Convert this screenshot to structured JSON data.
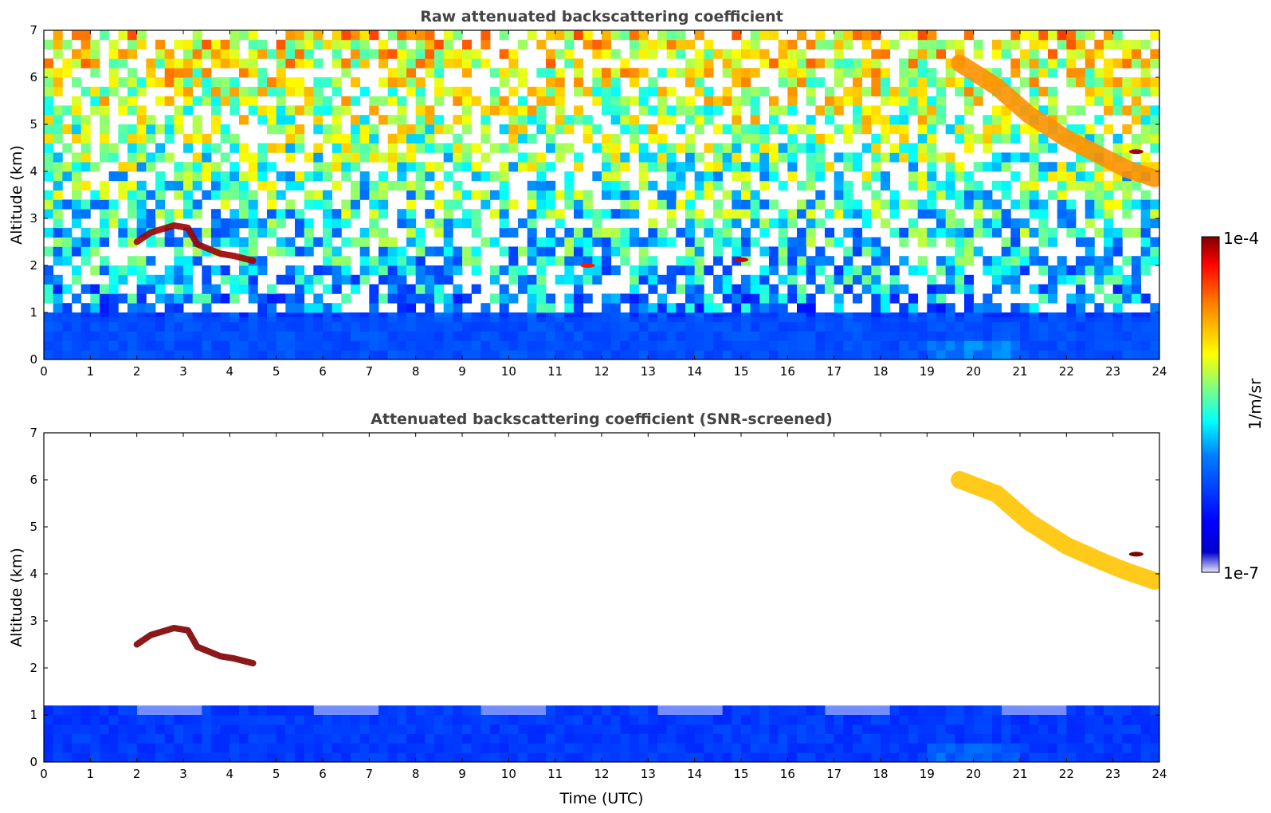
{
  "chart_data": [
    {
      "type": "heatmap",
      "title": "Raw attenuated backscattering coefficient",
      "xlabel": "",
      "ylabel": "Altitude (km)",
      "xlim": [
        0,
        24
      ],
      "ylim": [
        0,
        7
      ],
      "x_ticks": [
        "0",
        "1",
        "2",
        "3",
        "4",
        "5",
        "6",
        "7",
        "8",
        "9",
        "10",
        "11",
        "12",
        "13",
        "14",
        "15",
        "16",
        "17",
        "18",
        "19",
        "20",
        "21",
        "22",
        "23",
        "24"
      ],
      "y_ticks": [
        "0",
        "1",
        "2",
        "3",
        "4",
        "5",
        "6",
        "7"
      ],
      "colormap": "jet",
      "features": [
        {
          "name": "Boundary layer aerosol",
          "time_start": 0,
          "time_end": 24,
          "alt_bottom": 0,
          "alt_top": 0.9,
          "level": 0.28
        },
        {
          "name": "Cloud layer A",
          "points": [
            [
              2.0,
              2.5
            ],
            [
              2.3,
              2.7
            ],
            [
              2.8,
              2.85
            ],
            [
              3.1,
              2.8
            ],
            [
              3.3,
              2.45
            ],
            [
              3.8,
              2.25
            ],
            [
              4.1,
              2.2
            ],
            [
              4.5,
              2.1
            ]
          ],
          "level": 0.98
        },
        {
          "name": "Small cloud 1",
          "time": 15.0,
          "alt": 2.12,
          "level": 0.95
        },
        {
          "name": "Small cloud 2",
          "time": 11.7,
          "alt": 2.0,
          "level": 0.9
        },
        {
          "name": "Descending cirrus",
          "points": [
            [
              19.7,
              6.3
            ],
            [
              20.5,
              5.8
            ],
            [
              21.2,
              5.2
            ],
            [
              22.0,
              4.7
            ],
            [
              22.8,
              4.3
            ],
            [
              23.3,
              4.05
            ],
            [
              23.9,
              3.85
            ]
          ],
          "level": 0.78
        },
        {
          "name": "Dense cirrus patch",
          "time": 23.5,
          "alt": 4.42,
          "level": 0.98
        }
      ]
    },
    {
      "type": "heatmap",
      "title": "Attenuated backscattering coefficient (SNR-screened)",
      "xlabel": "Time (UTC)",
      "ylabel": "Altitude (km)",
      "xlim": [
        0,
        24
      ],
      "ylim": [
        0,
        7
      ],
      "x_ticks": [
        "0",
        "1",
        "2",
        "3",
        "4",
        "5",
        "6",
        "7",
        "8",
        "9",
        "10",
        "11",
        "12",
        "13",
        "14",
        "15",
        "16",
        "17",
        "18",
        "19",
        "20",
        "21",
        "22",
        "23",
        "24"
      ],
      "y_ticks": [
        "0",
        "1",
        "2",
        "3",
        "4",
        "5",
        "6",
        "7"
      ],
      "colormap": "jet",
      "screened_background": "white",
      "features": [
        {
          "name": "Boundary layer aerosol",
          "time_start": 0,
          "time_end": 24,
          "alt_bottom": 0,
          "alt_top": 1.2,
          "level": 0.22
        },
        {
          "name": "Cloud layer A (saturated)",
          "points": [
            [
              2.0,
              2.5
            ],
            [
              2.3,
              2.7
            ],
            [
              2.8,
              2.85
            ],
            [
              3.1,
              2.8
            ],
            [
              3.3,
              2.45
            ],
            [
              3.8,
              2.25
            ],
            [
              4.1,
              2.2
            ],
            [
              4.5,
              2.1
            ]
          ],
          "level": 1.0
        },
        {
          "name": "Descending cirrus",
          "points": [
            [
              19.7,
              6.0
            ],
            [
              20.5,
              5.7
            ],
            [
              21.2,
              5.1
            ],
            [
              22.0,
              4.6
            ],
            [
              22.8,
              4.25
            ],
            [
              23.3,
              4.05
            ],
            [
              23.9,
              3.85
            ]
          ],
          "level": 0.72
        },
        {
          "name": "Dense cirrus patch",
          "time": 23.5,
          "alt": 4.42,
          "level": 1.0
        }
      ]
    }
  ],
  "colorbar": {
    "label": "1/m/sr",
    "max_label": "1e-4",
    "min_label": "1e-7",
    "scale": "log",
    "range": [
      1e-07,
      0.0001
    ],
    "colormap_stops": [
      "#e6e6fa",
      "#00008f",
      "#0000ff",
      "#0080ff",
      "#00ffff",
      "#80ff80",
      "#ffff00",
      "#ff8000",
      "#ff0000",
      "#800000"
    ]
  }
}
